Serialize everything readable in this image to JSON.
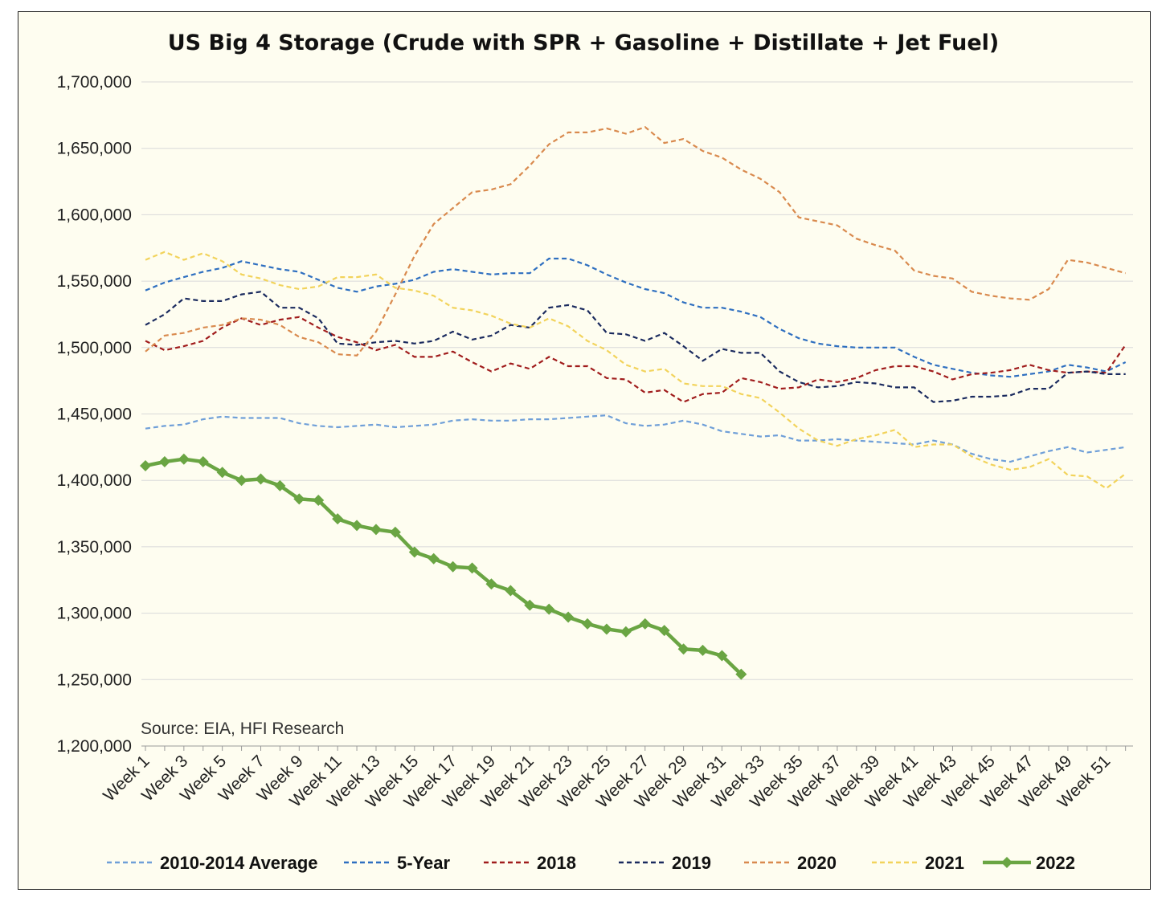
{
  "chart_data": {
    "type": "line",
    "title": "US Big 4 Storage (Crude with SPR + Gasoline + Distillate + Jet Fuel)",
    "source_note": "Source: EIA, HFI Research",
    "xlabel": "",
    "ylabel": "",
    "ylim": [
      1200000,
      1700000
    ],
    "y_ticks": [
      1200000,
      1250000,
      1300000,
      1350000,
      1400000,
      1450000,
      1500000,
      1550000,
      1600000,
      1650000,
      1700000
    ],
    "y_tick_labels": [
      "1,200,000",
      "1,250,000",
      "1,300,000",
      "1,350,000",
      "1,400,000",
      "1,450,000",
      "1,500,000",
      "1,550,000",
      "1,600,000",
      "1,650,000",
      "1,700,000"
    ],
    "x_tick_labels": [
      "Week 1",
      "Week 3",
      "Week 5",
      "Week 7",
      "Week 9",
      "Week 11",
      "Week 13",
      "Week 15",
      "Week 17",
      "Week 19",
      "Week 21",
      "Week 23",
      "Week 25",
      "Week 27",
      "Week 29",
      "Week 31",
      "Week 33",
      "Week 35",
      "Week 37",
      "Week 39",
      "Week 41",
      "Week 43",
      "Week 45",
      "Week 47",
      "Week 49",
      "Week 51"
    ],
    "n_weeks": 52,
    "grid": true,
    "legend_position": "bottom",
    "series": [
      {
        "name": "2010-2014 Average",
        "color": "#6f9fd8",
        "style": "dashed",
        "values": [
          1439000,
          1441000,
          1442000,
          1446000,
          1448000,
          1447000,
          1447000,
          1447000,
          1443000,
          1441000,
          1440000,
          1441000,
          1442000,
          1440000,
          1441000,
          1442000,
          1445000,
          1446000,
          1445000,
          1445000,
          1446000,
          1446000,
          1447000,
          1448000,
          1449000,
          1443000,
          1441000,
          1442000,
          1445000,
          1442000,
          1437000,
          1435000,
          1433000,
          1434000,
          1430000,
          1430000,
          1431000,
          1430000,
          1429000,
          1428000,
          1427000,
          1430000,
          1427000,
          1420000,
          1416000,
          1414000,
          1418000,
          1422000,
          1425000,
          1421000,
          1423000,
          1425000
        ]
      },
      {
        "name": "5-Year",
        "color": "#2e6fc0",
        "style": "dashed",
        "values": [
          1543000,
          1549000,
          1553000,
          1557000,
          1560000,
          1565000,
          1562000,
          1559000,
          1557000,
          1551000,
          1545000,
          1542000,
          1546000,
          1548000,
          1551000,
          1557000,
          1559000,
          1557000,
          1555000,
          1556000,
          1556000,
          1567000,
          1567000,
          1562000,
          1555000,
          1549000,
          1544000,
          1541000,
          1534000,
          1530000,
          1530000,
          1527000,
          1523000,
          1514000,
          1507000,
          1503000,
          1501000,
          1500000,
          1500000,
          1500000,
          1493000,
          1487000,
          1484000,
          1481000,
          1479000,
          1478000,
          1480000,
          1482000,
          1487000,
          1485000,
          1482000,
          1489000
        ]
      },
      {
        "name": "2018",
        "color": "#a01c1c",
        "style": "dashed",
        "values": [
          1505000,
          1498000,
          1501000,
          1505000,
          1515000,
          1522000,
          1517000,
          1521000,
          1523000,
          1515000,
          1508000,
          1504000,
          1498000,
          1502000,
          1493000,
          1493000,
          1497000,
          1489000,
          1482000,
          1488000,
          1484000,
          1493000,
          1486000,
          1486000,
          1477000,
          1476000,
          1466000,
          1468000,
          1459000,
          1465000,
          1466000,
          1477000,
          1474000,
          1469000,
          1470000,
          1476000,
          1474000,
          1477000,
          1483000,
          1486000,
          1486000,
          1482000,
          1476000,
          1480000,
          1481000,
          1483000,
          1487000,
          1483000,
          1481000,
          1482000,
          1481000,
          1502000
        ]
      },
      {
        "name": "2019",
        "color": "#1a2a5e",
        "style": "dashed",
        "values": [
          1517000,
          1525000,
          1537000,
          1535000,
          1535000,
          1540000,
          1542000,
          1530000,
          1530000,
          1522000,
          1503000,
          1502000,
          1504000,
          1505000,
          1503000,
          1505000,
          1512000,
          1506000,
          1509000,
          1517000,
          1515000,
          1530000,
          1532000,
          1528000,
          1511000,
          1510000,
          1505000,
          1511000,
          1501000,
          1490000,
          1499000,
          1496000,
          1496000,
          1482000,
          1474000,
          1470000,
          1471000,
          1474000,
          1473000,
          1470000,
          1470000,
          1459000,
          1460000,
          1463000,
          1463000,
          1464000,
          1469000,
          1469000,
          1481000,
          1482000,
          1480000,
          1480000
        ]
      },
      {
        "name": "2020",
        "color": "#d98a4e",
        "style": "dashed",
        "values": [
          1497000,
          1509000,
          1511000,
          1515000,
          1517000,
          1522000,
          1521000,
          1517000,
          1508000,
          1504000,
          1495000,
          1494000,
          1512000,
          1540000,
          1569000,
          1593000,
          1605000,
          1617000,
          1619000,
          1623000,
          1637000,
          1653000,
          1662000,
          1662000,
          1665000,
          1661000,
          1666000,
          1654000,
          1657000,
          1648000,
          1643000,
          1634000,
          1627000,
          1617000,
          1598000,
          1595000,
          1592000,
          1582000,
          1577000,
          1573000,
          1558000,
          1554000,
          1552000,
          1542000,
          1539000,
          1537000,
          1536000,
          1544000,
          1566000,
          1564000,
          1560000,
          1556000
        ]
      },
      {
        "name": "2021",
        "color": "#f2d35b",
        "style": "dashed",
        "values": [
          1566000,
          1572000,
          1566000,
          1571000,
          1565000,
          1555000,
          1552000,
          1547000,
          1544000,
          1546000,
          1553000,
          1553000,
          1555000,
          1545000,
          1543000,
          1539000,
          1530000,
          1528000,
          1524000,
          1518000,
          1515000,
          1522000,
          1516000,
          1505000,
          1498000,
          1487000,
          1482000,
          1484000,
          1473000,
          1471000,
          1471000,
          1465000,
          1462000,
          1451000,
          1439000,
          1430000,
          1426000,
          1431000,
          1434000,
          1438000,
          1425000,
          1427000,
          1427000,
          1418000,
          1412000,
          1408000,
          1410000,
          1416000,
          1404000,
          1403000,
          1394000,
          1405000
        ]
      },
      {
        "name": "2022",
        "color": "#6aa543",
        "style": "solid-marker",
        "values": [
          1411000,
          1414000,
          1416000,
          1414000,
          1406000,
          1400000,
          1401000,
          1396000,
          1386000,
          1385000,
          1371000,
          1366000,
          1363000,
          1361000,
          1346000,
          1341000,
          1335000,
          1334000,
          1322000,
          1317000,
          1306000,
          1303000,
          1297000,
          1292000,
          1288000,
          1286000,
          1292000,
          1287000,
          1273000,
          1272000,
          1268000,
          1254000
        ]
      }
    ]
  }
}
